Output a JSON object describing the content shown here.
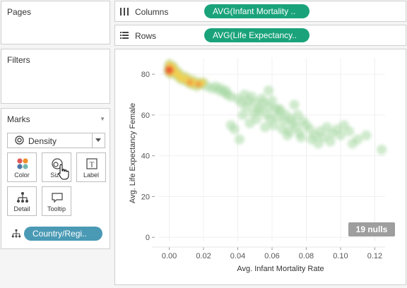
{
  "pages": {
    "title": "Pages"
  },
  "filters": {
    "title": "Filters"
  },
  "marks": {
    "title": "Marks",
    "mark_type": "Density",
    "buttons": {
      "color": "Color",
      "size": "Size",
      "label": "Label",
      "detail": "Detail",
      "tooltip": "Tooltip"
    },
    "detail_pill": "Country/Regi..",
    "detail_pill_color": "#4a9ab5"
  },
  "shelves": {
    "columns": {
      "label": "Columns",
      "pill": "AVG(Infant Mortality .."
    },
    "rows": {
      "label": "Rows",
      "pill": "AVG(Life Expectancy.."
    },
    "pill_color": "#1aa37a"
  },
  "view": {
    "nulls_badge": "19 nulls"
  },
  "chart_data": {
    "type": "scatter",
    "mark": "density",
    "xlabel": "Avg. Infant Mortality Rate",
    "ylabel": "Avg. Life Expectancy Female",
    "xlim": [
      -0.006,
      0.126
    ],
    "ylim": [
      -2,
      88
    ],
    "x_ticks": [
      "0.00",
      "0.02",
      "0.04",
      "0.06",
      "0.08",
      "0.10",
      "0.12"
    ],
    "y_ticks": [
      "0",
      "20",
      "40",
      "60",
      "80"
    ],
    "grid": true,
    "points": [
      [
        0.0,
        85
      ],
      [
        0.0,
        84
      ],
      [
        0.001,
        83
      ],
      [
        0.002,
        82
      ],
      [
        0.003,
        81
      ],
      [
        0.004,
        80
      ],
      [
        0.005,
        79
      ],
      [
        0.006,
        78
      ],
      [
        0.007,
        78
      ],
      [
        0.008,
        77
      ],
      [
        0.01,
        77
      ],
      [
        0.011,
        76
      ],
      [
        0.012,
        76
      ],
      [
        0.013,
        75
      ],
      [
        0.014,
        75
      ],
      [
        0.015,
        76
      ],
      [
        0.016,
        74
      ],
      [
        0.017,
        75
      ],
      [
        0.018,
        76
      ],
      [
        0.019,
        75
      ],
      [
        0.001,
        82
      ],
      [
        0.0,
        83
      ],
      [
        0.002,
        84
      ],
      [
        0.003,
        83
      ],
      [
        0.001,
        80
      ],
      [
        0.005,
        81
      ],
      [
        0.006,
        80
      ],
      [
        0.009,
        79
      ],
      [
        0.011,
        78
      ],
      [
        0.014,
        77
      ],
      [
        0.0,
        82
      ],
      [
        0.0,
        82
      ],
      [
        0.001,
        82
      ],
      [
        0.0,
        81
      ],
      [
        0.02,
        76
      ],
      [
        0.022,
        74
      ],
      [
        0.025,
        73
      ],
      [
        0.027,
        74
      ],
      [
        0.029,
        72
      ],
      [
        0.03,
        73
      ],
      [
        0.032,
        71
      ],
      [
        0.034,
        70
      ],
      [
        0.036,
        69
      ],
      [
        0.033,
        72
      ],
      [
        0.04,
        68
      ],
      [
        0.042,
        66
      ],
      [
        0.044,
        70
      ],
      [
        0.046,
        67
      ],
      [
        0.048,
        69
      ],
      [
        0.05,
        66
      ],
      [
        0.052,
        63
      ],
      [
        0.054,
        68
      ],
      [
        0.055,
        66
      ],
      [
        0.058,
        64
      ],
      [
        0.06,
        67
      ],
      [
        0.062,
        63
      ],
      [
        0.045,
        64
      ],
      [
        0.049,
        61
      ],
      [
        0.053,
        62
      ],
      [
        0.057,
        60
      ],
      [
        0.059,
        58
      ],
      [
        0.063,
        59
      ],
      [
        0.065,
        62
      ],
      [
        0.067,
        57
      ],
      [
        0.043,
        60
      ],
      [
        0.047,
        56
      ],
      [
        0.051,
        58
      ],
      [
        0.056,
        54
      ],
      [
        0.061,
        55
      ],
      [
        0.066,
        53
      ],
      [
        0.07,
        52
      ],
      [
        0.072,
        56
      ],
      [
        0.074,
        54
      ],
      [
        0.076,
        51
      ],
      [
        0.068,
        60
      ],
      [
        0.071,
        58
      ],
      [
        0.075,
        60
      ],
      [
        0.078,
        57
      ],
      [
        0.08,
        55
      ],
      [
        0.082,
        53
      ],
      [
        0.085,
        50
      ],
      [
        0.088,
        52
      ],
      [
        0.09,
        49
      ],
      [
        0.092,
        54
      ],
      [
        0.077,
        49
      ],
      [
        0.083,
        48
      ],
      [
        0.087,
        46
      ],
      [
        0.095,
        51
      ],
      [
        0.098,
        53
      ],
      [
        0.1,
        50
      ],
      [
        0.102,
        55
      ],
      [
        0.105,
        52
      ],
      [
        0.11,
        48
      ],
      [
        0.115,
        50
      ],
      [
        0.124,
        43
      ],
      [
        0.041,
        48
      ],
      [
        0.036,
        55
      ],
      [
        0.038,
        53
      ],
      [
        0.073,
        65
      ],
      [
        0.058,
        72
      ],
      [
        0.064,
        63
      ],
      [
        0.069,
        50
      ],
      [
        0.094,
        47
      ],
      [
        0.107,
        46
      ]
    ],
    "hot_points": [
      [
        0.0,
        82
      ],
      [
        0.012,
        76
      ],
      [
        0.017,
        75
      ]
    ]
  }
}
